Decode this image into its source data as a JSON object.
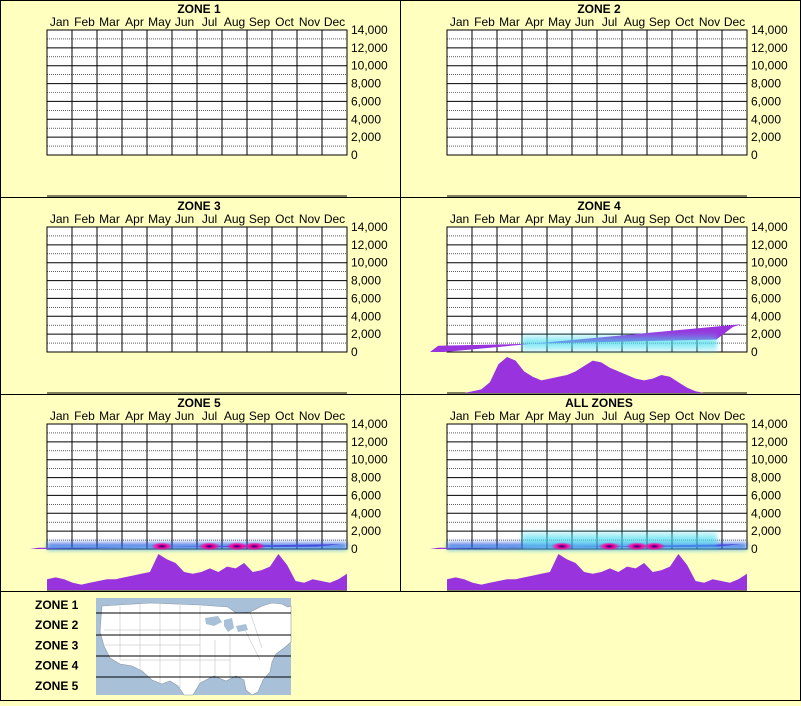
{
  "months": [
    "Jan",
    "Feb",
    "Mar",
    "Apr",
    "May",
    "Jun",
    "Jul",
    "Aug",
    "Sep",
    "Oct",
    "Nov",
    "Dec"
  ],
  "y_ticks": [
    "14,000",
    "12,000",
    "10,000",
    "8,000",
    "6,000",
    "4,000",
    "2,000",
    "0"
  ],
  "colors": {
    "background": "#ffffc0",
    "grid": "#000000",
    "profile_fill": "#9933dd",
    "density_cyan": "#44ddee",
    "density_blue": "#1144dd",
    "density_magenta": "#ff0099",
    "map_water": "#a8c0d8",
    "map_land": "#ffffff"
  },
  "chart_data": [
    {
      "type": "heatmap",
      "title": "ZONE 1",
      "x_categories": [
        "Jan",
        "Feb",
        "Mar",
        "Apr",
        "May",
        "Jun",
        "Jul",
        "Aug",
        "Sep",
        "Oct",
        "Nov",
        "Dec"
      ],
      "ylim": [
        0,
        14000
      ],
      "has_data": false
    },
    {
      "type": "heatmap",
      "title": "ZONE 2",
      "x_categories": [
        "Jan",
        "Feb",
        "Mar",
        "Apr",
        "May",
        "Jun",
        "Jul",
        "Aug",
        "Sep",
        "Oct",
        "Nov",
        "Dec"
      ],
      "ylim": [
        0,
        14000
      ],
      "has_data": false
    },
    {
      "type": "heatmap",
      "title": "ZONE 3",
      "x_categories": [
        "Jan",
        "Feb",
        "Mar",
        "Apr",
        "May",
        "Jun",
        "Jul",
        "Aug",
        "Sep",
        "Oct",
        "Nov",
        "Dec"
      ],
      "ylim": [
        0,
        14000
      ],
      "has_data": false
    },
    {
      "type": "heatmap",
      "title": "ZONE 4",
      "x_categories": [
        "Jan",
        "Feb",
        "Mar",
        "Apr",
        "May",
        "Jun",
        "Jul",
        "Aug",
        "Sep",
        "Oct",
        "Nov",
        "Dec"
      ],
      "ylim": [
        0,
        14000
      ],
      "has_data": true,
      "elevation_profile": [
        0,
        700,
        1400,
        2100,
        2800,
        3100
      ],
      "density_bands": [
        {
          "elevation": 1000,
          "from_month": 3.0,
          "to_month": 10.8,
          "intensity": "low"
        }
      ],
      "seasonal_profile": [
        0,
        0,
        0,
        0.05,
        0.1,
        0.3,
        0.8,
        1.0,
        0.9,
        0.6,
        0.45,
        0.35,
        0.4,
        0.45,
        0.5,
        0.6,
        0.75,
        0.9,
        0.85,
        0.7,
        0.6,
        0.5,
        0.4,
        0.35,
        0.4,
        0.5,
        0.45,
        0.3,
        0.15,
        0.05,
        0,
        0,
        0,
        0,
        0,
        0
      ]
    },
    {
      "type": "heatmap",
      "title": "ZONE 5",
      "x_categories": [
        "Jan",
        "Feb",
        "Mar",
        "Apr",
        "May",
        "Jun",
        "Jul",
        "Aug",
        "Sep",
        "Oct",
        "Nov",
        "Dec"
      ],
      "ylim": [
        0,
        14000
      ],
      "has_data": true,
      "elevation_profile": [
        0,
        150,
        250,
        350,
        450,
        550
      ],
      "density_bands": [
        {
          "elevation": 300,
          "from_month": 0.0,
          "to_month": 12.0,
          "intensity": "medium"
        }
      ],
      "hotspots": [
        4.6,
        6.5,
        7.6,
        8.3
      ],
      "seasonal_profile": [
        0.3,
        0.35,
        0.3,
        0.2,
        0.15,
        0.2,
        0.25,
        0.3,
        0.3,
        0.35,
        0.4,
        0.45,
        0.5,
        1.0,
        0.85,
        0.75,
        0.5,
        0.45,
        0.5,
        0.6,
        0.5,
        0.65,
        0.6,
        0.75,
        0.5,
        0.55,
        0.65,
        1.0,
        0.7,
        0.25,
        0.2,
        0.3,
        0.25,
        0.2,
        0.3,
        0.45
      ]
    },
    {
      "type": "heatmap",
      "title": "ALL ZONES",
      "x_categories": [
        "Jan",
        "Feb",
        "Mar",
        "Apr",
        "May",
        "Jun",
        "Jul",
        "Aug",
        "Sep",
        "Oct",
        "Nov",
        "Dec"
      ],
      "ylim": [
        0,
        14000
      ],
      "has_data": true,
      "elevation_profile": [
        0,
        150,
        250,
        350,
        450,
        550
      ],
      "density_bands": [
        {
          "elevation": 300,
          "from_month": 0.0,
          "to_month": 12.0,
          "intensity": "medium"
        },
        {
          "elevation": 1000,
          "from_month": 3.0,
          "to_month": 10.8,
          "intensity": "low"
        }
      ],
      "hotspots": [
        4.6,
        6.5,
        7.6,
        8.3
      ],
      "seasonal_profile": [
        0.3,
        0.35,
        0.3,
        0.2,
        0.15,
        0.2,
        0.25,
        0.3,
        0.3,
        0.35,
        0.4,
        0.45,
        0.5,
        1.0,
        0.85,
        0.75,
        0.5,
        0.45,
        0.5,
        0.6,
        0.5,
        0.65,
        0.6,
        0.75,
        0.5,
        0.55,
        0.65,
        1.0,
        0.7,
        0.25,
        0.2,
        0.3,
        0.25,
        0.2,
        0.3,
        0.45
      ]
    }
  ],
  "footer": {
    "zone_labels": [
      "ZONE 1",
      "ZONE 2",
      "ZONE 3",
      "ZONE 4",
      "ZONE 5"
    ]
  }
}
